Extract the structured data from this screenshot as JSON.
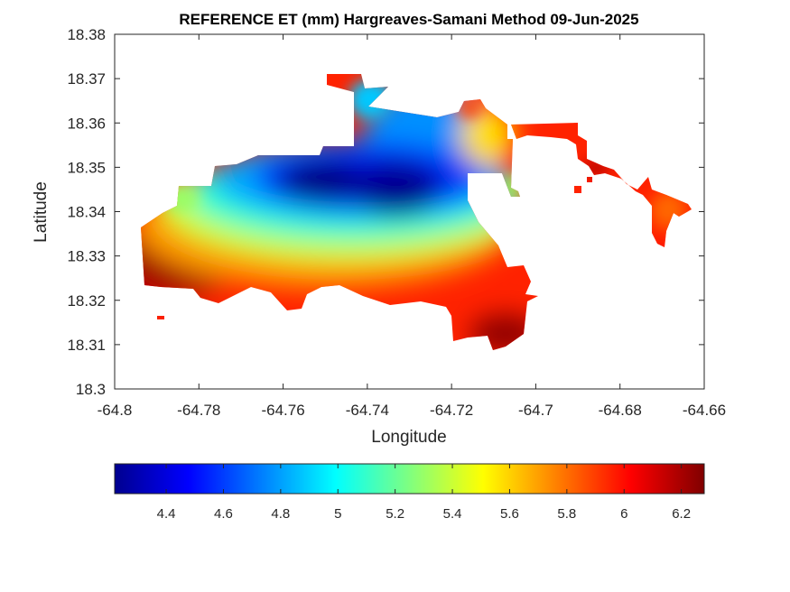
{
  "title": "REFERENCE ET (mm) Hargreaves-Samani Method  09-Jun-2025",
  "map": {
    "xlabel": "Longitude",
    "ylabel": "Latitude",
    "xlim": [
      -64.8,
      -64.66
    ],
    "ylim": [
      18.3,
      18.38
    ],
    "xticks": [
      "-64.8",
      "-64.78",
      "-64.76",
      "-64.74",
      "-64.72",
      "-64.7",
      "-64.68",
      "-64.66"
    ],
    "yticks": [
      "18.3",
      "18.31",
      "18.32",
      "18.33",
      "18.34",
      "18.35",
      "18.36",
      "18.37",
      "18.38"
    ]
  },
  "colorbar": {
    "colormap": "jet",
    "range": [
      4.22,
      6.28
    ],
    "ticks": [
      "4.4",
      "4.6",
      "4.8",
      "5",
      "5.2",
      "5.4",
      "5.6",
      "5.8",
      "6",
      "6.2"
    ]
  },
  "chart_data": {
    "type": "heatmap",
    "title": "REFERENCE ET (mm) Hargreaves-Samani Method  09-Jun-2025",
    "xlabel": "Longitude",
    "ylabel": "Latitude",
    "xlim": [
      -64.8,
      -64.66
    ],
    "ylim": [
      18.3,
      18.38
    ],
    "value_range": [
      4.22,
      6.28
    ],
    "colormap": "jet",
    "grid": false,
    "regions": [
      {
        "name": "north-center-low",
        "lon": -64.742,
        "lat": 18.346,
        "value": 4.3
      },
      {
        "name": "center-low",
        "lon": -64.752,
        "lat": 18.345,
        "value": 4.3
      },
      {
        "name": "north-inlet",
        "lon": -64.738,
        "lat": 18.362,
        "value": 4.8
      },
      {
        "name": "west-center",
        "lon": -64.77,
        "lat": 18.341,
        "value": 4.9
      },
      {
        "name": "east-center",
        "lon": -64.722,
        "lat": 18.343,
        "value": 4.7
      },
      {
        "name": "south-west-coast",
        "lon": -64.79,
        "lat": 18.328,
        "value": 6.2
      },
      {
        "name": "south-coast",
        "lon": -64.745,
        "lat": 18.322,
        "value": 6.0
      },
      {
        "name": "south-east-coast",
        "lon": -64.715,
        "lat": 18.312,
        "value": 6.2
      },
      {
        "name": "north-east-peninsula",
        "lon": -64.705,
        "lat": 18.357,
        "value": 5.8
      },
      {
        "name": "east-island",
        "lon": -64.67,
        "lat": 18.34,
        "value": 5.9
      }
    ]
  }
}
